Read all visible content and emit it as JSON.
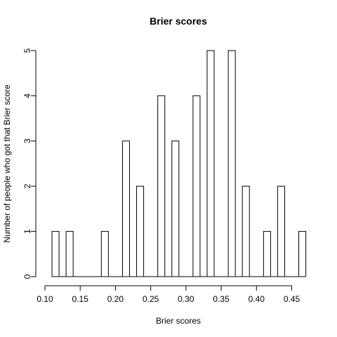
{
  "chart_data": {
    "type": "bar",
    "title": "Brier scores",
    "xlabel": "Brier scores",
    "ylabel": "Number of people who got that Brier score",
    "bin_width": 0.01,
    "bins": [
      {
        "start": 0.11,
        "end": 0.12,
        "count": 1
      },
      {
        "start": 0.12,
        "end": 0.13,
        "count": 0
      },
      {
        "start": 0.13,
        "end": 0.14,
        "count": 1
      },
      {
        "start": 0.14,
        "end": 0.15,
        "count": 0
      },
      {
        "start": 0.15,
        "end": 0.16,
        "count": 0
      },
      {
        "start": 0.16,
        "end": 0.17,
        "count": 0
      },
      {
        "start": 0.17,
        "end": 0.18,
        "count": 0
      },
      {
        "start": 0.18,
        "end": 0.19,
        "count": 1
      },
      {
        "start": 0.19,
        "end": 0.2,
        "count": 0
      },
      {
        "start": 0.2,
        "end": 0.21,
        "count": 0
      },
      {
        "start": 0.21,
        "end": 0.22,
        "count": 3
      },
      {
        "start": 0.22,
        "end": 0.23,
        "count": 0
      },
      {
        "start": 0.23,
        "end": 0.24,
        "count": 2
      },
      {
        "start": 0.24,
        "end": 0.25,
        "count": 0
      },
      {
        "start": 0.25,
        "end": 0.26,
        "count": 0
      },
      {
        "start": 0.26,
        "end": 0.27,
        "count": 4
      },
      {
        "start": 0.27,
        "end": 0.28,
        "count": 0
      },
      {
        "start": 0.28,
        "end": 0.29,
        "count": 3
      },
      {
        "start": 0.29,
        "end": 0.3,
        "count": 0
      },
      {
        "start": 0.3,
        "end": 0.31,
        "count": 0
      },
      {
        "start": 0.31,
        "end": 0.32,
        "count": 4
      },
      {
        "start": 0.32,
        "end": 0.33,
        "count": 0
      },
      {
        "start": 0.33,
        "end": 0.34,
        "count": 5
      },
      {
        "start": 0.34,
        "end": 0.35,
        "count": 0
      },
      {
        "start": 0.35,
        "end": 0.36,
        "count": 0
      },
      {
        "start": 0.36,
        "end": 0.37,
        "count": 5
      },
      {
        "start": 0.37,
        "end": 0.38,
        "count": 0
      },
      {
        "start": 0.38,
        "end": 0.39,
        "count": 2
      },
      {
        "start": 0.39,
        "end": 0.4,
        "count": 0
      },
      {
        "start": 0.4,
        "end": 0.41,
        "count": 0
      },
      {
        "start": 0.41,
        "end": 0.42,
        "count": 1
      },
      {
        "start": 0.42,
        "end": 0.43,
        "count": 0
      },
      {
        "start": 0.43,
        "end": 0.44,
        "count": 2
      },
      {
        "start": 0.44,
        "end": 0.45,
        "count": 0
      },
      {
        "start": 0.45,
        "end": 0.46,
        "count": 0
      },
      {
        "start": 0.46,
        "end": 0.47,
        "count": 1
      }
    ],
    "xlim": [
      0.1,
      0.47
    ],
    "ylim": [
      0,
      5
    ],
    "x_ticks": [
      "0.10",
      "0.15",
      "0.20",
      "0.25",
      "0.30",
      "0.35",
      "0.40",
      "0.45"
    ],
    "y_ticks": [
      "0",
      "1",
      "2",
      "3",
      "4",
      "5"
    ],
    "bar_fill": "#ffffff",
    "bar_stroke": "#000000",
    "grid": false
  }
}
